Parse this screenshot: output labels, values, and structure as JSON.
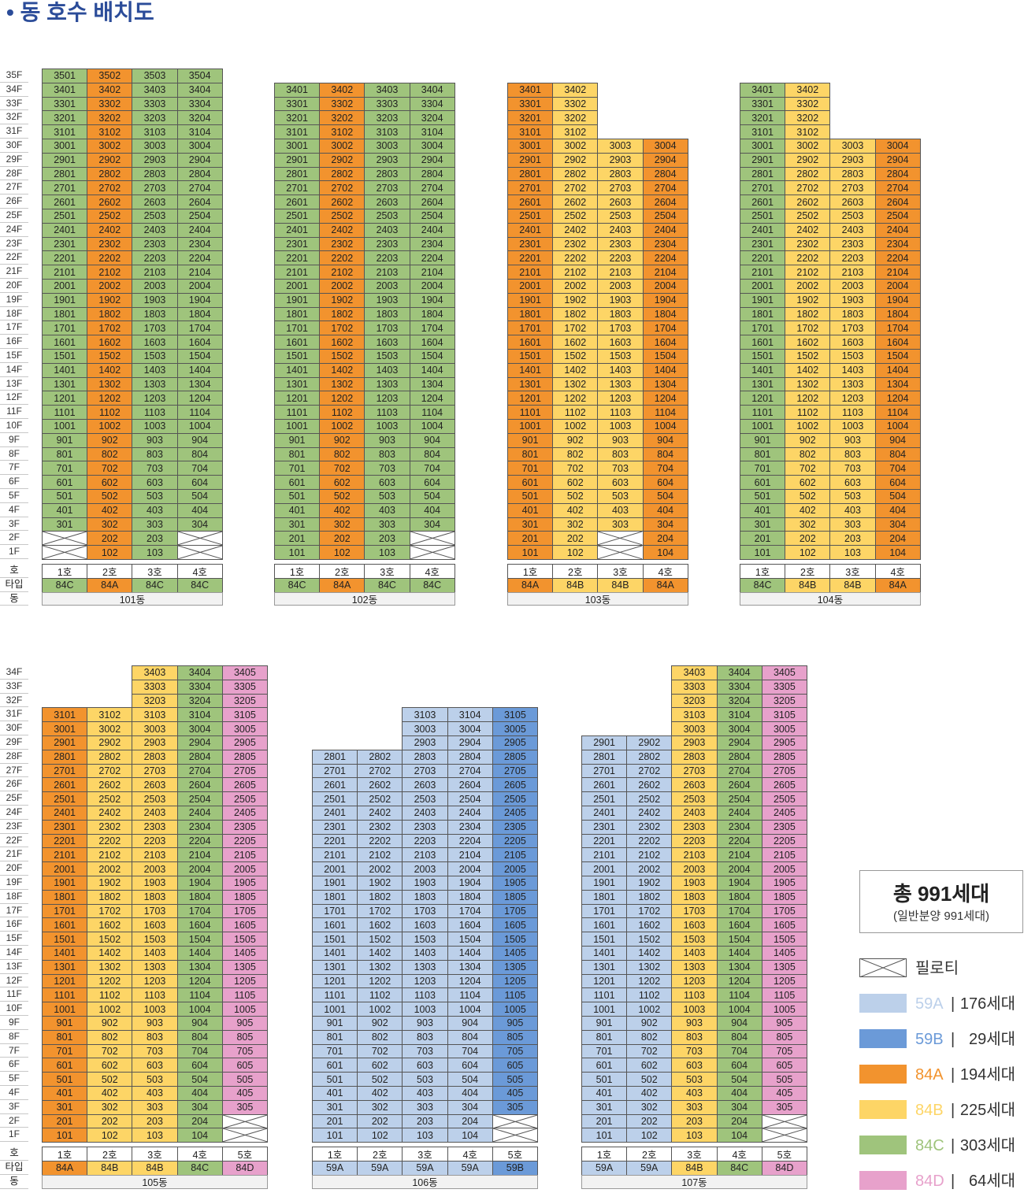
{
  "title": "• 동 호수 배치도",
  "type_colors": {
    "59A": "#bcd0ea",
    "59B": "#6b9ad8",
    "84A": "#f2932e",
    "84B": "#fdd566",
    "84C": "#9fc47c",
    "84D": "#e7a1cb"
  },
  "row_labels": {
    "ho": "호",
    "type": "타입",
    "dong": "동"
  },
  "top_floors": [
    "35F",
    "34F",
    "33F",
    "32F",
    "31F",
    "30F",
    "29F",
    "28F",
    "27F",
    "26F",
    "25F",
    "24F",
    "23F",
    "22F",
    "21F",
    "20F",
    "19F",
    "18F",
    "17F",
    "16F",
    "15F",
    "14F",
    "13F",
    "12F",
    "11F",
    "10F",
    "9F",
    "8F",
    "7F",
    "6F",
    "5F",
    "4F",
    "3F",
    "2F",
    "1F"
  ],
  "bottom_floors": [
    "34F",
    "33F",
    "32F",
    "31F",
    "30F",
    "29F",
    "28F",
    "27F",
    "26F",
    "25F",
    "24F",
    "23F",
    "22F",
    "21F",
    "20F",
    "19F",
    "18F",
    "17F",
    "16F",
    "15F",
    "14F",
    "13F",
    "12F",
    "11F",
    "10F",
    "9F",
    "8F",
    "7F",
    "6F",
    "5F",
    "4F",
    "3F",
    "2F",
    "1F"
  ],
  "buildings": [
    {
      "name": "101동",
      "columns": [
        {
          "ho": "1호",
          "type": "84C",
          "top": 35,
          "pilotis": [
            2,
            1
          ]
        },
        {
          "ho": "2호",
          "type": "84A",
          "top": 35,
          "pilotis": []
        },
        {
          "ho": "3호",
          "type": "84C",
          "top": 35,
          "pilotis": []
        },
        {
          "ho": "4호",
          "type": "84C",
          "top": 35,
          "pilotis": [
            2,
            1
          ]
        }
      ]
    },
    {
      "name": "102동",
      "columns": [
        {
          "ho": "1호",
          "type": "84C",
          "top": 34,
          "pilotis": []
        },
        {
          "ho": "2호",
          "type": "84A",
          "top": 34,
          "pilotis": []
        },
        {
          "ho": "3호",
          "type": "84C",
          "top": 34,
          "pilotis": []
        },
        {
          "ho": "4호",
          "type": "84C",
          "top": 34,
          "pilotis": [
            2,
            1
          ]
        }
      ]
    },
    {
      "name": "103동",
      "columns": [
        {
          "ho": "1호",
          "type": "84A",
          "top": 34,
          "pilotis": []
        },
        {
          "ho": "2호",
          "type": "84B",
          "top": 34,
          "pilotis": []
        },
        {
          "ho": "3호",
          "type": "84B",
          "top": 30,
          "pilotis": [
            2,
            1
          ]
        },
        {
          "ho": "4호",
          "type": "84A",
          "top": 30,
          "pilotis": []
        }
      ]
    },
    {
      "name": "104동",
      "columns": [
        {
          "ho": "1호",
          "type": "84C",
          "top": 34,
          "pilotis": []
        },
        {
          "ho": "2호",
          "type": "84B",
          "top": 34,
          "pilotis": []
        },
        {
          "ho": "3호",
          "type": "84B",
          "top": 30,
          "pilotis": []
        },
        {
          "ho": "4호",
          "type": "84A",
          "top": 30,
          "pilotis": []
        }
      ]
    },
    {
      "name": "105동",
      "columns": [
        {
          "ho": "1호",
          "type": "84A",
          "top": 31,
          "pilotis": []
        },
        {
          "ho": "2호",
          "type": "84B",
          "top": 31,
          "pilotis": []
        },
        {
          "ho": "3호",
          "type": "84B",
          "top": 34,
          "pilotis": []
        },
        {
          "ho": "4호",
          "type": "84C",
          "top": 34,
          "pilotis": []
        },
        {
          "ho": "5호",
          "type": "84D",
          "top": 34,
          "pilotis": [
            2,
            1
          ]
        }
      ]
    },
    {
      "name": "106동",
      "columns": [
        {
          "ho": "1호",
          "type": "59A",
          "top": 28,
          "pilotis": []
        },
        {
          "ho": "2호",
          "type": "59A",
          "top": 28,
          "pilotis": []
        },
        {
          "ho": "3호",
          "type": "59A",
          "top": 31,
          "pilotis": []
        },
        {
          "ho": "4호",
          "type": "59A",
          "top": 31,
          "pilotis": []
        },
        {
          "ho": "5호",
          "type": "59B",
          "top": 31,
          "pilotis": [
            2,
            1
          ]
        }
      ]
    },
    {
      "name": "107동",
      "columns": [
        {
          "ho": "1호",
          "type": "59A",
          "top": 29,
          "pilotis": []
        },
        {
          "ho": "2호",
          "type": "59A",
          "top": 29,
          "pilotis": []
        },
        {
          "ho": "3호",
          "type": "84B",
          "top": 34,
          "pilotis": []
        },
        {
          "ho": "4호",
          "type": "84C",
          "top": 34,
          "pilotis": []
        },
        {
          "ho": "5호",
          "type": "84D",
          "top": 34,
          "pilotis": [
            2,
            1
          ]
        }
      ]
    }
  ],
  "legend": {
    "total": "총 991세대",
    "subtotal": "(일반분양 991세대)",
    "pilotis_label": "필로티",
    "separator": "|",
    "items": [
      {
        "type": "59A",
        "count": "176세대"
      },
      {
        "type": "59B",
        "count": "29세대"
      },
      {
        "type": "84A",
        "count": "194세대"
      },
      {
        "type": "84B",
        "count": "225세대"
      },
      {
        "type": "84C",
        "count": "303세대"
      },
      {
        "type": "84D",
        "count": "64세대"
      }
    ]
  }
}
